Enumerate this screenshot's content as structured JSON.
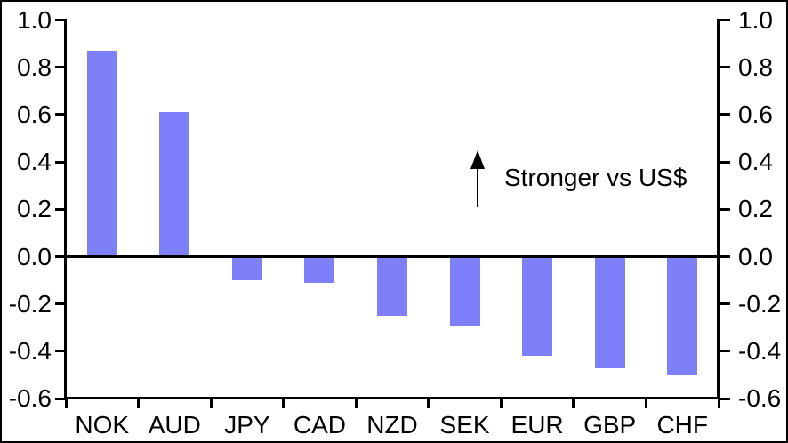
{
  "chart_data": {
    "type": "bar",
    "categories": [
      "NOK",
      "AUD",
      "JPY",
      "CAD",
      "NZD",
      "SEK",
      "EUR",
      "GBP",
      "CHF"
    ],
    "values": [
      0.87,
      0.61,
      -0.1,
      -0.11,
      -0.25,
      -0.29,
      -0.42,
      -0.47,
      -0.5
    ],
    "title": "",
    "xlabel": "",
    "ylabel": "",
    "ylim": [
      -0.6,
      1.0
    ],
    "ytick_interval": 0.2,
    "ytick_labels": [
      "1.0",
      "0.8",
      "0.6",
      "0.4",
      "0.2",
      "0.0",
      "-0.2",
      "-0.4",
      "-0.6"
    ],
    "right_axis_mirrored": true,
    "grid": false,
    "legend": "none",
    "bar_color": "#7E80FA",
    "axis_color": "#000000",
    "background_color": "#FFFFFF",
    "annotation": {
      "text": "Stronger vs US$",
      "arrow_direction": "up"
    }
  }
}
